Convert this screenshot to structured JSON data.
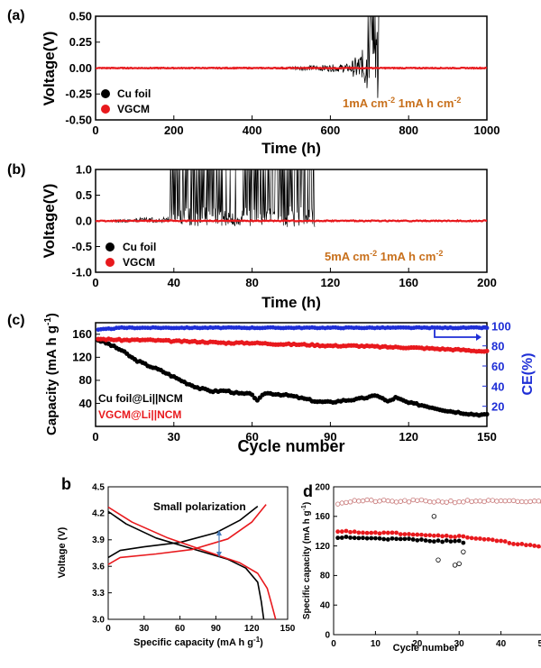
{
  "chart_data": [
    {
      "type": "line",
      "panel_label": "(a)",
      "xlabel": "Time (h)",
      "ylabel": "Voltage(V)",
      "xlim": [
        0,
        1000
      ],
      "ylim": [
        -0.5,
        0.5
      ],
      "xticks": [
        "0",
        "200",
        "400",
        "600",
        "800",
        "1000"
      ],
      "yticks": [
        "-0.50",
        "-0.25",
        "0.00",
        "0.25",
        "0.50"
      ],
      "annotation": "1mA cm-2 1mA h cm-2",
      "legend": "bottom-left",
      "series": [
        {
          "name": "Cu foil",
          "color": "#000000",
          "x": [
            0,
            300,
            500,
            600,
            650,
            680,
            700,
            720,
            730
          ],
          "y": [
            0.0,
            0.0,
            0.01,
            0.02,
            0.04,
            0.08,
            0.5,
            0.5,
            0.5
          ]
        },
        {
          "name": "VGCM",
          "color": "#e8191d",
          "x": [
            0,
            1000
          ],
          "y": [
            0.0,
            0.0
          ]
        }
      ]
    },
    {
      "type": "line",
      "panel_label": "(b)",
      "xlabel": "Time (h)",
      "ylabel": "Voltage(V)",
      "xlim": [
        0,
        200
      ],
      "ylim": [
        -1.0,
        1.0
      ],
      "xticks": [
        "0",
        "40",
        "80",
        "120",
        "160",
        "200"
      ],
      "yticks": [
        "-1.0",
        "-0.5",
        "0.0",
        "0.5",
        "1.0"
      ],
      "annotation": "5mA cm-2 1mA h cm-2",
      "legend": "bottom-left",
      "series": [
        {
          "name": "Cu foil",
          "color": "#000000",
          "x": [
            10,
            20,
            30,
            38,
            42,
            60,
            80,
            100,
            112
          ],
          "y": [
            0.0,
            0.03,
            0.05,
            0.1,
            1.0,
            1.0,
            1.0,
            1.0,
            1.0
          ]
        },
        {
          "name": "VGCM",
          "color": "#e8191d",
          "x": [
            0,
            200
          ],
          "y": [
            0.0,
            0.0
          ]
        }
      ]
    },
    {
      "type": "scatter",
      "panel_label": "(c)",
      "xlabel": "Cycle number",
      "ylabel": "Capacity (mA h g-1)",
      "y2label": "CE(%)",
      "xlim": [
        0,
        150
      ],
      "ylim": [
        0,
        180
      ],
      "y2lim": [
        0,
        103
      ],
      "xticks": [
        "0",
        "30",
        "60",
        "90",
        "120",
        "150"
      ],
      "yticks": [
        "40",
        "80",
        "120",
        "160"
      ],
      "y2ticks": [
        "20",
        "40",
        "60",
        "80",
        "100"
      ],
      "legend": "bottom-left",
      "series": [
        {
          "name": "Cu foil@Li||NCM",
          "color": "#000000",
          "x": [
            1,
            5,
            10,
            15,
            20,
            25,
            30,
            35,
            40,
            45,
            50,
            55,
            60,
            62,
            65,
            70,
            75,
            80,
            85,
            90,
            95,
            100,
            105,
            108,
            112,
            115,
            120,
            125,
            130,
            135,
            140,
            145,
            150
          ],
          "y": [
            150,
            143,
            132,
            116,
            106,
            97,
            86,
            75,
            66,
            61,
            62,
            57,
            56,
            44,
            58,
            56,
            53,
            48,
            43,
            42,
            45,
            47,
            51,
            54,
            43,
            50,
            41,
            37,
            32,
            27,
            24,
            21,
            20
          ]
        },
        {
          "name": "VGCM@Li||NCM",
          "color": "#e8191d",
          "x": [
            1,
            10,
            20,
            30,
            40,
            50,
            60,
            70,
            80,
            90,
            100,
            110,
            120,
            130,
            140,
            150
          ],
          "y": [
            152,
            150,
            150,
            148,
            147,
            145,
            145,
            143,
            142,
            140,
            140,
            138,
            137,
            135,
            133,
            130
          ]
        },
        {
          "name": "CE",
          "color": "#1f2fd6",
          "x": [
            1,
            10,
            30,
            50,
            70,
            90,
            110,
            130,
            150
          ],
          "y": [
            96,
            98,
            98,
            98,
            98,
            98,
            98,
            98,
            98
          ]
        }
      ]
    },
    {
      "type": "line",
      "panel_label": "b",
      "xlabel": "Specific capacity (mA h g-1)",
      "ylabel": "Voltage (V)",
      "xlim": [
        0,
        150
      ],
      "ylim": [
        3.0,
        4.5
      ],
      "xticks": [
        "0",
        "30",
        "60",
        "90",
        "120",
        "150"
      ],
      "yticks": [
        "3.0",
        "3.3",
        "3.6",
        "3.9",
        "4.2",
        "4.5"
      ],
      "annotation": "Small polarization",
      "series": [
        {
          "name": "charge-black",
          "color": "#000000",
          "x": [
            0,
            10,
            30,
            60,
            90,
            110,
            125
          ],
          "y": [
            3.7,
            3.78,
            3.82,
            3.87,
            3.98,
            4.12,
            4.28
          ]
        },
        {
          "name": "discharge-black",
          "color": "#000000",
          "x": [
            0,
            15,
            40,
            70,
            100,
            115,
            125,
            128,
            130
          ],
          "y": [
            4.22,
            4.08,
            3.92,
            3.8,
            3.68,
            3.58,
            3.42,
            3.2,
            3.0
          ]
        },
        {
          "name": "charge-red",
          "color": "#e8191d",
          "x": [
            0,
            10,
            40,
            70,
            100,
            120,
            132
          ],
          "y": [
            3.62,
            3.7,
            3.74,
            3.79,
            3.91,
            4.1,
            4.3
          ]
        },
        {
          "name": "discharge-red",
          "color": "#e8191d",
          "x": [
            0,
            20,
            50,
            80,
            110,
            125,
            133,
            137,
            140
          ],
          "y": [
            4.27,
            4.1,
            3.92,
            3.78,
            3.64,
            3.52,
            3.35,
            3.15,
            3.0
          ]
        }
      ]
    },
    {
      "type": "scatter",
      "panel_label": "d",
      "xlabel": "Cycle number",
      "ylabel": "Specific capacity (mA h g-1)",
      "xlim": [
        0,
        50
      ],
      "ylim": [
        0,
        200
      ],
      "xticks": [
        "0",
        "10",
        "20",
        "30",
        "40",
        "50"
      ],
      "yticks": [
        "0",
        "40",
        "80",
        "120",
        "160",
        "200"
      ],
      "series": [
        {
          "name": "black-capacity",
          "color": "#000000",
          "x": [
            1,
            3,
            5,
            8,
            10,
            12,
            15,
            18,
            20,
            22,
            24,
            26,
            28,
            30,
            31
          ],
          "y": [
            131,
            132,
            131,
            130,
            131,
            130,
            129,
            129,
            128,
            128,
            127,
            126,
            127,
            126,
            125
          ]
        },
        {
          "name": "red-capacity",
          "color": "#e8191d",
          "x": [
            1,
            5,
            10,
            15,
            20,
            25,
            30,
            35,
            40,
            45,
            50
          ],
          "y": [
            140,
            139,
            138,
            137,
            136,
            134,
            133,
            130,
            126,
            122,
            118
          ]
        },
        {
          "name": "open-ce",
          "color": "#c87878",
          "x": [
            1,
            5,
            10,
            15,
            20,
            25,
            30,
            35,
            40,
            45,
            50
          ],
          "y": [
            178,
            181,
            181,
            180,
            181,
            180,
            180,
            181,
            180,
            180,
            180
          ]
        },
        {
          "name": "black-open",
          "color": "#000000",
          "x": [
            24,
            25,
            29,
            30,
            31
          ],
          "y": [
            160,
            101,
            94,
            96,
            112
          ]
        }
      ]
    }
  ]
}
